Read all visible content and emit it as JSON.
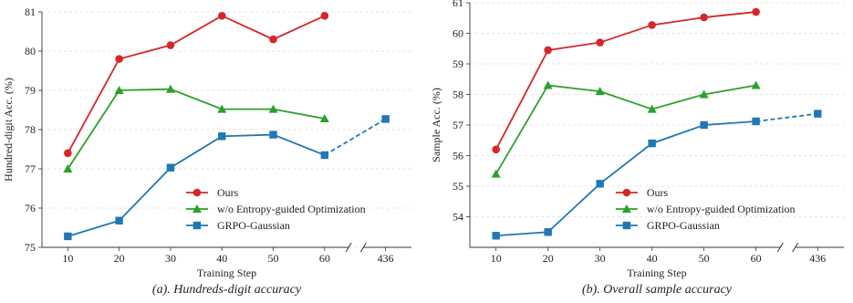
{
  "chart_data": [
    {
      "type": "line",
      "caption": "(a). Hundreds-digit accuracy",
      "xlabel": "Training Step",
      "ylabel": "Hundred-digit Acc. (%)",
      "x_ticks": [
        "10",
        "20",
        "30",
        "40",
        "50",
        "60",
        "436"
      ],
      "broken_axis": true,
      "ylim": [
        75,
        81
      ],
      "y_ticks": [
        "75",
        "76",
        "77",
        "78",
        "79",
        "80",
        "81"
      ],
      "grid": "horizontal-dashed",
      "legend_position": "lower-center",
      "series": [
        {
          "name": "Ours",
          "color": "#d62728",
          "marker": "circle",
          "x": [
            10,
            20,
            30,
            40,
            50,
            60
          ],
          "values": [
            77.4,
            79.8,
            80.15,
            80.9,
            80.3,
            80.9
          ]
        },
        {
          "name": "w/o Entropy-guided Optimization",
          "color": "#2ca02c",
          "marker": "triangle",
          "x": [
            10,
            20,
            30,
            40,
            50,
            60
          ],
          "values": [
            77.0,
            79.0,
            79.03,
            78.52,
            78.52,
            78.28
          ]
        },
        {
          "name": "GRPO-Gaussian",
          "color": "#1f77b4",
          "marker": "square",
          "x": [
            10,
            20,
            30,
            40,
            50,
            60,
            436
          ],
          "values": [
            75.28,
            75.68,
            77.03,
            77.83,
            77.87,
            77.35,
            78.27
          ],
          "dashed_last_segment": true
        }
      ]
    },
    {
      "type": "line",
      "caption": "(b). Overall sample accuracy",
      "xlabel": "Training Step",
      "ylabel": "Sample Acc. (%)",
      "x_ticks": [
        "10",
        "20",
        "30",
        "40",
        "50",
        "60",
        "436"
      ],
      "broken_axis": true,
      "ylim": [
        53,
        61
      ],
      "y_ticks": [
        "54",
        "55",
        "56",
        "57",
        "58",
        "59",
        "60",
        "61"
      ],
      "grid": "horizontal-dashed",
      "legend_position": "lower-center",
      "series": [
        {
          "name": "Ours",
          "color": "#d62728",
          "marker": "circle",
          "x": [
            10,
            20,
            30,
            40,
            50,
            60
          ],
          "values": [
            56.2,
            59.45,
            59.7,
            60.27,
            60.52,
            60.7
          ]
        },
        {
          "name": "w/o Entropy-guided Optimization",
          "color": "#2ca02c",
          "marker": "triangle",
          "x": [
            10,
            20,
            30,
            40,
            50,
            60
          ],
          "values": [
            55.4,
            58.3,
            58.1,
            57.52,
            58.0,
            58.3
          ]
        },
        {
          "name": "GRPO-Gaussian",
          "color": "#1f77b4",
          "marker": "square",
          "x": [
            10,
            20,
            30,
            40,
            50,
            60,
            436
          ],
          "values": [
            53.38,
            53.5,
            55.08,
            56.4,
            57.0,
            57.12,
            57.37
          ],
          "dashed_last_segment": true
        }
      ]
    }
  ]
}
